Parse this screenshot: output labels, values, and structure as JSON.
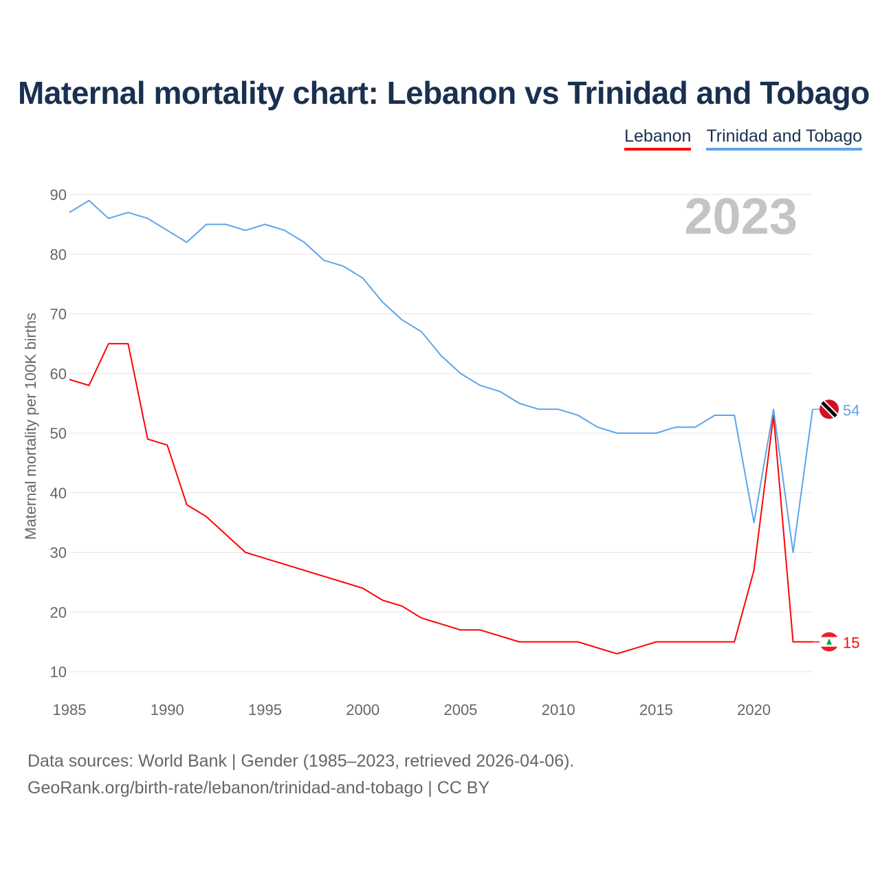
{
  "title": "Maternal mortality chart: Lebanon vs Trinidad and Tobago",
  "legend": [
    "Lebanon",
    "Trinidad and Tobago"
  ],
  "year_label": "2023",
  "source_line1": "Data sources: World Bank | Gender (1985–2023, retrieved 2026-04-06).",
  "source_line2": "GeoRank.org/birth-rate/lebanon/trinidad-and-tobago | CC BY",
  "chart_data": {
    "type": "line",
    "title": "Maternal mortality chart: Lebanon vs Trinidad and Tobago",
    "xlabel": "",
    "ylabel": "Maternal mortality per 100K births",
    "xlim": [
      1985,
      2023
    ],
    "ylim": [
      10,
      90
    ],
    "xticks": [
      1985,
      1990,
      1995,
      2000,
      2005,
      2010,
      2015,
      2020
    ],
    "yticks": [
      10,
      20,
      30,
      40,
      50,
      60,
      70,
      80,
      90
    ],
    "grid": true,
    "legend_position": "top-right",
    "x": [
      1985,
      1986,
      1987,
      1988,
      1989,
      1990,
      1991,
      1992,
      1993,
      1994,
      1995,
      1996,
      1997,
      1998,
      1999,
      2000,
      2001,
      2002,
      2003,
      2004,
      2005,
      2006,
      2007,
      2008,
      2009,
      2010,
      2011,
      2012,
      2013,
      2014,
      2015,
      2016,
      2017,
      2018,
      2019,
      2020,
      2021,
      2022,
      2023
    ],
    "series": [
      {
        "name": "Lebanon",
        "color": "#ff0000",
        "end_label": "15",
        "values": [
          59,
          58,
          65,
          65,
          49,
          48,
          38,
          36,
          33,
          30,
          29,
          28,
          27,
          26,
          25,
          24,
          22,
          21,
          19,
          18,
          17,
          17,
          16,
          15,
          15,
          15,
          15,
          14,
          13,
          14,
          15,
          15,
          15,
          15,
          15,
          27,
          53,
          15,
          15
        ]
      },
      {
        "name": "Trinidad and Tobago",
        "color": "#5aa5ea",
        "end_label": "54",
        "values": [
          87,
          89,
          86,
          87,
          86,
          84,
          82,
          85,
          85,
          84,
          85,
          84,
          82,
          79,
          78,
          76,
          72,
          69,
          67,
          63,
          60,
          58,
          57,
          55,
          54,
          54,
          53,
          51,
          50,
          50,
          50,
          51,
          51,
          53,
          53,
          35,
          54,
          30,
          54
        ]
      }
    ]
  }
}
